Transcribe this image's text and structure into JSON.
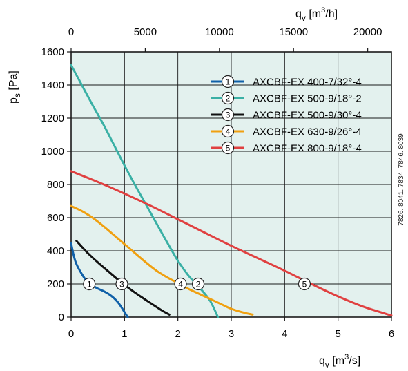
{
  "chart_data": {
    "type": "line",
    "colors": {
      "plot_background": "#e3f1ee",
      "grid": "#1a1a1a"
    },
    "x_axis": {
      "label_main": "q",
      "label_sub": "v",
      "label_unit": "[m",
      "label_unit_sup": "3",
      "label_unit_end": "/s]",
      "range": [
        0,
        6
      ],
      "ticks": [
        0,
        1,
        2,
        3,
        4,
        5,
        6
      ]
    },
    "x2_axis": {
      "label_main": "q",
      "label_sub": "v",
      "label_unit": "[m",
      "label_unit_sup": "3",
      "label_unit_end": "/h]",
      "range": [
        0,
        21600
      ],
      "ticks": [
        0,
        5000,
        10000,
        15000,
        20000
      ]
    },
    "y_axis": {
      "label_main": "p",
      "label_sub": "s",
      "label_unit": "[Pa]",
      "range": [
        0,
        1600
      ],
      "ticks": [
        0,
        200,
        400,
        600,
        800,
        1000,
        1200,
        1400,
        1600
      ]
    },
    "legend_position": "top-right",
    "side_note": "7826. 8041. 7834. 7846. 8039",
    "series": [
      {
        "name": "AXCBF-EX 400-7/32°-4",
        "marker": "1",
        "color": "#1060a8",
        "marker_at": [
          0.34,
          200
        ],
        "points": [
          [
            0.0,
            445
          ],
          [
            0.05,
            370
          ],
          [
            0.1,
            320
          ],
          [
            0.2,
            260
          ],
          [
            0.3,
            215
          ],
          [
            0.4,
            190
          ],
          [
            0.5,
            172
          ],
          [
            0.6,
            158
          ],
          [
            0.7,
            140
          ],
          [
            0.8,
            115
          ],
          [
            0.9,
            80
          ],
          [
            1.0,
            30
          ],
          [
            1.06,
            0
          ]
        ]
      },
      {
        "name": "AXCBF-EX 500-9/18°-2",
        "marker": "2",
        "color": "#3ab0a5",
        "marker_at": [
          2.38,
          200
        ],
        "points": [
          [
            0.0,
            1520
          ],
          [
            0.2,
            1400
          ],
          [
            0.4,
            1280
          ],
          [
            0.6,
            1165
          ],
          [
            0.8,
            1040
          ],
          [
            1.0,
            915
          ],
          [
            1.2,
            795
          ],
          [
            1.4,
            680
          ],
          [
            1.6,
            565
          ],
          [
            1.8,
            450
          ],
          [
            2.0,
            340
          ],
          [
            2.2,
            250
          ],
          [
            2.4,
            180
          ],
          [
            2.6,
            100
          ],
          [
            2.75,
            0
          ]
        ]
      },
      {
        "name": "AXCBF-EX 500-9/30°-4",
        "marker": "3",
        "color": "#111111",
        "marker_at": [
          0.95,
          200
        ],
        "points": [
          [
            0.1,
            460
          ],
          [
            0.3,
            390
          ],
          [
            0.5,
            330
          ],
          [
            0.7,
            275
          ],
          [
            0.9,
            220
          ],
          [
            1.1,
            170
          ],
          [
            1.3,
            125
          ],
          [
            1.5,
            82
          ],
          [
            1.7,
            40
          ],
          [
            1.84,
            15
          ]
        ]
      },
      {
        "name": "AXCBF-EX 630-9/26°-4",
        "marker": "4",
        "color": "#f0a010",
        "marker_at": [
          2.05,
          200
        ],
        "points": [
          [
            0.0,
            670
          ],
          [
            0.2,
            640
          ],
          [
            0.4,
            600
          ],
          [
            0.6,
            550
          ],
          [
            0.8,
            495
          ],
          [
            1.0,
            440
          ],
          [
            1.2,
            385
          ],
          [
            1.4,
            330
          ],
          [
            1.6,
            280
          ],
          [
            1.8,
            240
          ],
          [
            2.0,
            205
          ],
          [
            2.2,
            170
          ],
          [
            2.4,
            140
          ],
          [
            2.6,
            110
          ],
          [
            2.8,
            80
          ],
          [
            3.0,
            50
          ],
          [
            3.2,
            30
          ],
          [
            3.4,
            15
          ]
        ]
      },
      {
        "name": "AXCBF-EX 800-9/18°-4",
        "marker": "5",
        "color": "#e04040",
        "marker_at": [
          4.37,
          200
        ],
        "points": [
          [
            0.0,
            880
          ],
          [
            0.5,
            815
          ],
          [
            1.0,
            745
          ],
          [
            1.5,
            670
          ],
          [
            2.0,
            590
          ],
          [
            2.5,
            510
          ],
          [
            3.0,
            430
          ],
          [
            3.5,
            355
          ],
          [
            4.0,
            280
          ],
          [
            4.5,
            200
          ],
          [
            5.0,
            125
          ],
          [
            5.5,
            60
          ],
          [
            6.0,
            10
          ]
        ]
      }
    ]
  }
}
